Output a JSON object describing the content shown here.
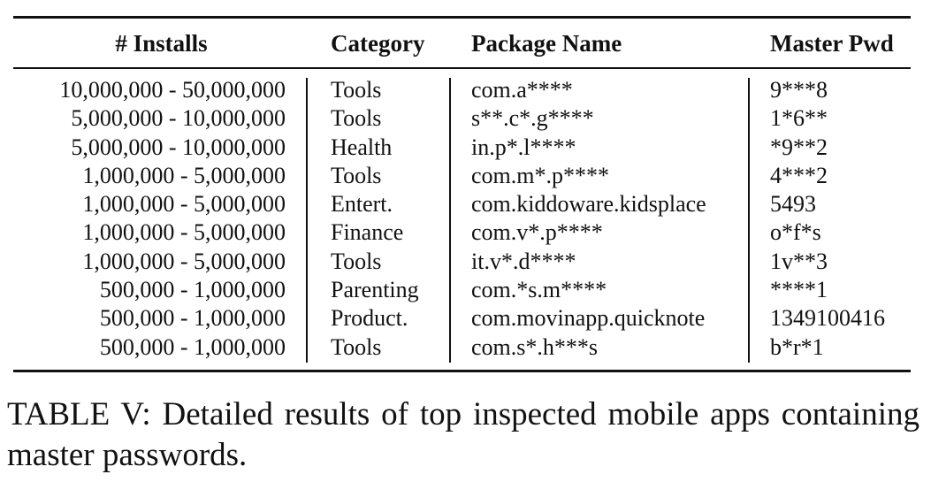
{
  "table": {
    "headers": {
      "installs": "# Installs",
      "category": "Category",
      "package": "Package Name",
      "password": "Master Pwd"
    },
    "rows": [
      {
        "installs": "10,000,000 - 50,000,000",
        "category": "Tools",
        "package": "com.a****",
        "password": "9***8"
      },
      {
        "installs": "5,000,000 - 10,000,000",
        "category": "Tools",
        "package": "s**.c*.g****",
        "password": "1*6**"
      },
      {
        "installs": "5,000,000 - 10,000,000",
        "category": "Health",
        "package": "in.p*.l****",
        "password": "*9**2"
      },
      {
        "installs": "1,000,000 - 5,000,000",
        "category": "Tools",
        "package": "com.m*.p****",
        "password": "4***2"
      },
      {
        "installs": "1,000,000 - 5,000,000",
        "category": "Entert.",
        "package": "com.kiddoware.kidsplace",
        "password": "5493"
      },
      {
        "installs": "1,000,000 - 5,000,000",
        "category": "Finance",
        "package": "com.v*.p****",
        "password": "o*f*s"
      },
      {
        "installs": "1,000,000 - 5,000,000",
        "category": "Tools",
        "package": "it.v*.d****",
        "password": "1v**3"
      },
      {
        "installs": "500,000 - 1,000,000",
        "category": "Parenting",
        "package": "com.*s.m****",
        "password": "****1"
      },
      {
        "installs": "500,000 - 1,000,000",
        "category": "Product.",
        "package": "com.movinapp.quicknote",
        "password": "1349100416"
      },
      {
        "installs": "500,000 - 1,000,000",
        "category": "Tools",
        "package": "com.s*.h***s",
        "password": "b*r*1"
      }
    ]
  },
  "caption": "TABLE V: Detailed results of top inspected mobile apps containing master passwords."
}
